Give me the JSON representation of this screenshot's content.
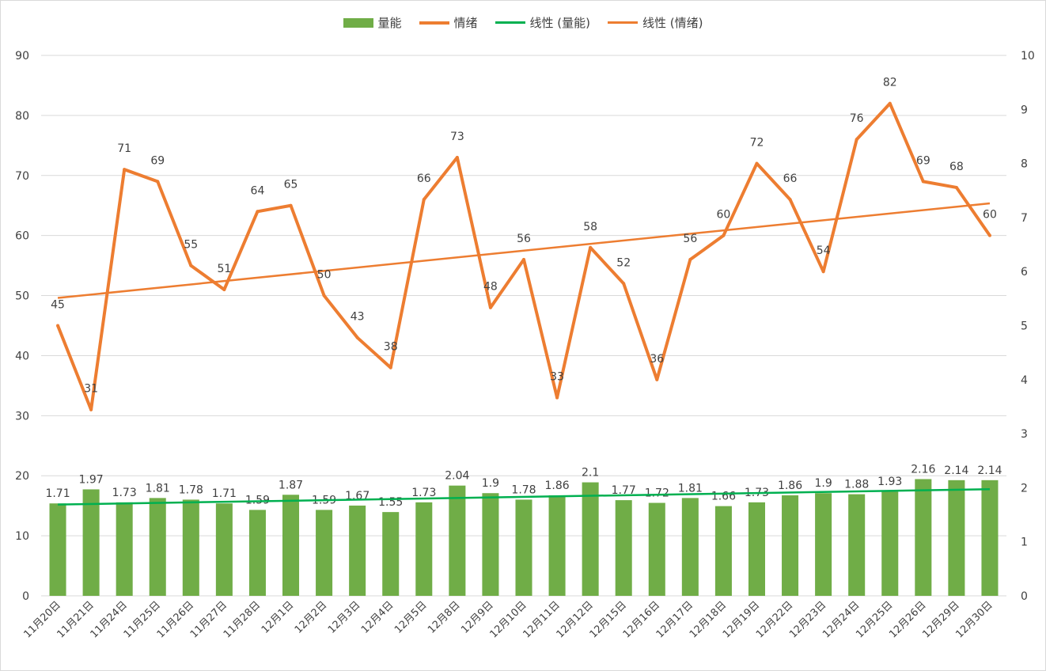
{
  "chart_data": {
    "type": "bar+line",
    "title": "",
    "categories": [
      "11月20日",
      "11月21日",
      "11月24日",
      "11月25日",
      "11月26日",
      "11月27日",
      "11月28日",
      "12月1日",
      "12月2日",
      "12月3日",
      "12月4日",
      "12月5日",
      "12月8日",
      "12月9日",
      "12月10日",
      "12月11日",
      "12月12日",
      "12月15日",
      "12月16日",
      "12月17日",
      "12月18日",
      "12月19日",
      "12月22日",
      "12月23日",
      "12月24日",
      "12月25日",
      "12月26日",
      "12月29日",
      "12月30日"
    ],
    "series": [
      {
        "name": "量能",
        "type": "bar",
        "axis": "right",
        "color": "#70ad47",
        "values": [
          1.71,
          1.97,
          1.73,
          1.81,
          1.78,
          1.71,
          1.59,
          1.87,
          1.59,
          1.67,
          1.55,
          1.73,
          2.04,
          1.9,
          1.78,
          1.86,
          2.1,
          1.77,
          1.72,
          1.81,
          1.66,
          1.73,
          1.86,
          1.9,
          1.88,
          1.93,
          2.16,
          2.14,
          2.14
        ]
      },
      {
        "name": "情绪",
        "type": "line",
        "axis": "left",
        "color": "#ed7d31",
        "values": [
          45,
          31,
          71,
          69,
          55,
          51,
          64,
          65,
          50,
          43,
          38,
          66,
          73,
          48,
          56,
          33,
          58,
          52,
          36,
          56,
          60,
          72,
          66,
          54,
          76,
          82,
          69,
          68,
          60
        ]
      }
    ],
    "trendlines": [
      {
        "name": "线性 (量能)",
        "of": "量能",
        "type": "linear",
        "color": "#00b050"
      },
      {
        "name": "线性 (情绪)",
        "of": "情绪",
        "type": "linear",
        "color": "#ed7d31"
      }
    ],
    "left_axis": {
      "ylim": [
        0,
        90
      ],
      "ticks": [
        "0",
        "10",
        "20",
        "30",
        "40",
        "50",
        "60",
        "70",
        "80",
        "90"
      ]
    },
    "right_axis": {
      "ylim": [
        0,
        10
      ],
      "ticks": [
        "0",
        "1",
        "2",
        "3",
        "4",
        "5",
        "6",
        "7",
        "8",
        "9",
        "10"
      ]
    },
    "grid": true,
    "legend_position": "top"
  }
}
